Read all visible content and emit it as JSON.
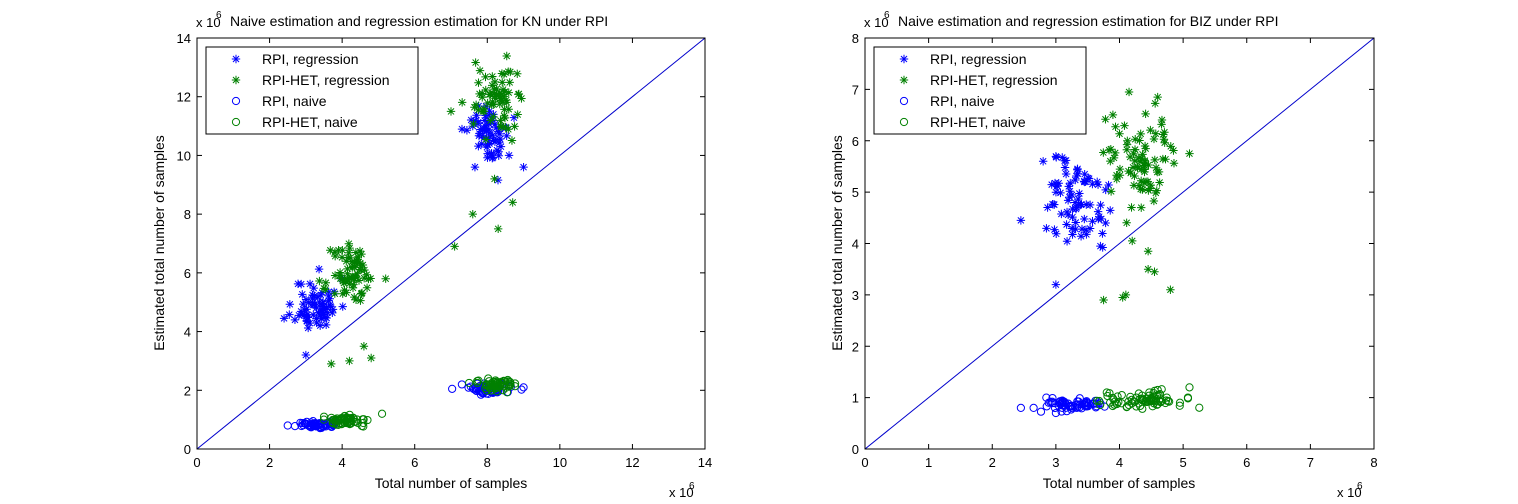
{
  "colors": {
    "regression_rpi": "#0000ff",
    "regression_het": "#008000",
    "naive_rpi": "#0000ff",
    "naive_het": "#008000",
    "line": "#0000cc"
  },
  "chart_data": [
    {
      "type": "scatter",
      "title": "Naive estimation and regression estimation for KN under RPI",
      "xlabel": "Total number of samples",
      "ylabel": "Estimated total number of samples",
      "x_multiplier": "x 10",
      "y_multiplier": "x 10",
      "exponent": "6",
      "xlim": [
        0,
        14
      ],
      "ylim": [
        0,
        14
      ],
      "xticks": [
        0,
        2,
        4,
        6,
        8,
        10,
        12,
        14
      ],
      "yticks": [
        0,
        2,
        4,
        6,
        8,
        10,
        12,
        14
      ],
      "xtick_labels": [
        "0",
        "2",
        "4",
        "6",
        "8",
        "10",
        "12",
        "14"
      ],
      "ytick_labels": [
        "0",
        "2",
        "4",
        "6",
        "8",
        "10",
        "12",
        "14"
      ],
      "legend_position": "top-left",
      "legend": [
        "RPI, regression",
        "RPI-HET, regression",
        "RPI, naive",
        "RPI-HET, naive"
      ],
      "reference_line": [
        [
          0,
          0
        ],
        [
          14,
          14
        ]
      ],
      "series": [
        {
          "name": "RPI, regression",
          "marker": "*",
          "color": "#0000ff",
          "clusters": [
            {
              "cx": 3.3,
              "cy": 4.9,
              "sx": 0.3,
              "sy": 0.45,
              "n": 70,
              "seed": 11
            },
            {
              "cx": 8.1,
              "cy": 10.7,
              "sx": 0.3,
              "sy": 0.5,
              "n": 65,
              "seed": 12
            }
          ],
          "extra": [
            [
              2.4,
              4.45
            ],
            [
              3.0,
              3.2
            ],
            [
              9.0,
              9.6
            ],
            [
              8.6,
              10.0
            ],
            [
              7.6,
              11.0
            ]
          ]
        },
        {
          "name": "RPI-HET, regression",
          "marker": "*",
          "color": "#008000",
          "clusters": [
            {
              "cx": 4.3,
              "cy": 5.9,
              "sx": 0.3,
              "sy": 0.5,
              "n": 70,
              "seed": 21
            },
            {
              "cx": 8.2,
              "cy": 12.0,
              "sx": 0.3,
              "sy": 0.55,
              "n": 70,
              "seed": 22
            }
          ],
          "extra": [
            [
              3.8,
              6.7
            ],
            [
              3.7,
              2.9
            ],
            [
              4.2,
              3.0
            ],
            [
              4.6,
              3.5
            ],
            [
              4.8,
              3.1
            ],
            [
              7.1,
              6.9
            ],
            [
              7.6,
              8.0
            ],
            [
              8.3,
              7.5
            ],
            [
              8.7,
              8.4
            ],
            [
              7.0,
              11.5
            ],
            [
              8.2,
              9.2
            ],
            [
              5.2,
              5.8
            ]
          ]
        },
        {
          "name": "RPI, naive",
          "marker": "o",
          "color": "#0000ff",
          "clusters": [
            {
              "cx": 3.3,
              "cy": 0.82,
              "sx": 0.28,
              "sy": 0.06,
              "n": 60,
              "seed": 31
            },
            {
              "cx": 8.0,
              "cy": 2.05,
              "sx": 0.35,
              "sy": 0.09,
              "n": 60,
              "seed": 32
            }
          ],
          "extra": [
            [
              2.5,
              0.8
            ],
            [
              2.7,
              0.78
            ],
            [
              9.0,
              2.1
            ],
            [
              7.3,
              2.2
            ]
          ]
        },
        {
          "name": "RPI-HET, naive",
          "marker": "o",
          "color": "#008000",
          "clusters": [
            {
              "cx": 4.2,
              "cy": 0.97,
              "sx": 0.3,
              "sy": 0.08,
              "n": 60,
              "seed": 41
            },
            {
              "cx": 8.2,
              "cy": 2.2,
              "sx": 0.3,
              "sy": 0.1,
              "n": 60,
              "seed": 42
            }
          ],
          "extra": [
            [
              5.1,
              1.2
            ],
            [
              3.5,
              1.1
            ],
            [
              7.5,
              2.25
            ]
          ]
        }
      ]
    },
    {
      "type": "scatter",
      "title": "Naive estimation and regression estimation for BIZ under RPI",
      "xlabel": "Total number of samples",
      "ylabel": "Estimated total number of samples",
      "x_multiplier": "x 10",
      "y_multiplier": "x 10",
      "exponent": "6",
      "xlim": [
        0,
        8
      ],
      "ylim": [
        0,
        8
      ],
      "xticks": [
        0,
        1,
        2,
        3,
        4,
        5,
        6,
        7,
        8
      ],
      "yticks": [
        0,
        1,
        2,
        3,
        4,
        5,
        6,
        7,
        8
      ],
      "xtick_labels": [
        "0",
        "1",
        "2",
        "3",
        "4",
        "5",
        "6",
        "7",
        "8"
      ],
      "ytick_labels": [
        "0",
        "1",
        "2",
        "3",
        "4",
        "5",
        "6",
        "7",
        "8"
      ],
      "legend_position": "top-left",
      "legend": [
        "RPI, regression",
        "RPI-HET, regression",
        "RPI, naive",
        "RPI-HET, naive"
      ],
      "reference_line": [
        [
          0,
          0
        ],
        [
          8,
          8
        ]
      ],
      "series": [
        {
          "name": "RPI, regression",
          "marker": "*",
          "color": "#0000ff",
          "clusters": [
            {
              "cx": 3.3,
              "cy": 4.85,
              "sx": 0.28,
              "sy": 0.45,
              "n": 80,
              "seed": 51
            }
          ],
          "extra": [
            [
              2.45,
              4.45
            ],
            [
              3.0,
              3.2
            ],
            [
              2.8,
              5.6
            ],
            [
              3.7,
              3.95
            ]
          ]
        },
        {
          "name": "RPI-HET, regression",
          "marker": "*",
          "color": "#008000",
          "clusters": [
            {
              "cx": 4.3,
              "cy": 5.7,
              "sx": 0.3,
              "sy": 0.55,
              "n": 85,
              "seed": 61
            }
          ],
          "extra": [
            [
              3.75,
              2.9
            ],
            [
              4.05,
              2.95
            ],
            [
              4.1,
              3.0
            ],
            [
              4.45,
              3.5
            ],
            [
              4.55,
              3.45
            ],
            [
              4.8,
              3.1
            ],
            [
              4.45,
              3.85
            ],
            [
              4.2,
              4.05
            ],
            [
              5.1,
              5.75
            ],
            [
              4.15,
              6.95
            ],
            [
              4.6,
              6.85
            ]
          ]
        },
        {
          "name": "RPI, naive",
          "marker": "o",
          "color": "#0000ff",
          "clusters": [
            {
              "cx": 3.3,
              "cy": 0.85,
              "sx": 0.25,
              "sy": 0.06,
              "n": 70,
              "seed": 71
            }
          ],
          "extra": [
            [
              2.45,
              0.8
            ],
            [
              2.65,
              0.8
            ],
            [
              2.85,
              1.0
            ],
            [
              3.0,
              0.7
            ]
          ]
        },
        {
          "name": "RPI-HET, naive",
          "marker": "o",
          "color": "#008000",
          "clusters": [
            {
              "cx": 4.3,
              "cy": 0.95,
              "sx": 0.3,
              "sy": 0.09,
              "n": 80,
              "seed": 81
            }
          ],
          "extra": [
            [
              5.1,
              1.2
            ],
            [
              4.95,
              0.9
            ],
            [
              3.8,
              1.1
            ],
            [
              4.6,
              1.15
            ]
          ]
        }
      ]
    }
  ]
}
